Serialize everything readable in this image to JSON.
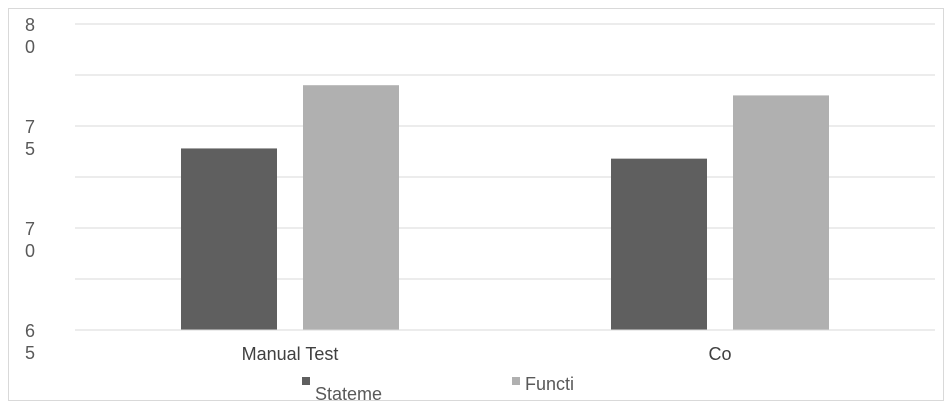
{
  "chart_data": {
    "type": "bar",
    "title": "",
    "xlabel": "",
    "ylabel": "",
    "categories": [
      "Manual Test",
      "Co"
    ],
    "series": [
      {
        "name": "Stateme",
        "color": "#5f5f5f",
        "values": [
          73.9,
          73.4
        ]
      },
      {
        "name": "Functi",
        "color": "#b0b0b0",
        "values": [
          77.0,
          76.5
        ]
      }
    ],
    "ylim": [
      65,
      80
    ],
    "y_ticks": [
      {
        "value": 80,
        "label": [
          "8",
          "0"
        ]
      },
      {
        "value": 75,
        "label": [
          "7",
          "5"
        ]
      },
      {
        "value": 70,
        "label": [
          "7",
          "0"
        ]
      },
      {
        "value": 65,
        "label": [
          "6",
          "5"
        ]
      }
    ],
    "grid": true,
    "legend_position": "bottom"
  }
}
